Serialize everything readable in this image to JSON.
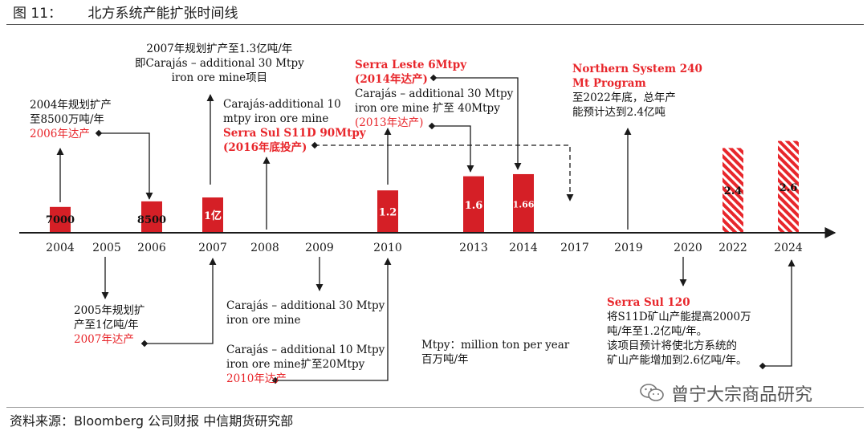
{
  "title": "图 11：      北方系统产能扩张时间线",
  "source": "资料来源：Bloomberg 公司财报 中信期货研究部",
  "watermark": "曾宁大宗商品研究",
  "colors": {
    "bar": "#d51f26",
    "hatch": "#e8262b",
    "red_text": "#e8262b",
    "axis": "#1a1a1a"
  },
  "chart_data": {
    "type": "bar",
    "categories": [
      "2004",
      "2005",
      "2006",
      "2007",
      "2008",
      "2009",
      "2010",
      "2013",
      "2014",
      "2017",
      "2019",
      "2020",
      "2022",
      "2024"
    ],
    "series": [
      {
        "values": [
          7000,
          null,
          8500,
          null,
          null,
          null,
          null,
          null,
          null,
          null,
          null,
          null,
          null,
          null
        ],
        "labels": [
          "7000",
          null,
          "8500",
          null,
          null,
          null,
          null,
          null,
          null,
          null,
          null,
          null,
          null,
          null
        ],
        "style": "solid"
      },
      {
        "values": [
          null,
          null,
          null,
          1,
          null,
          null,
          1.2,
          1.6,
          1.66,
          null,
          null,
          null,
          null,
          null
        ],
        "labels": [
          null,
          null,
          null,
          "1亿",
          null,
          null,
          "1.2",
          "1.6",
          "1.66",
          null,
          null,
          null,
          null,
          null
        ],
        "style": "solid"
      },
      {
        "values": [
          null,
          null,
          null,
          null,
          null,
          null,
          null,
          null,
          null,
          null,
          null,
          null,
          2.4,
          2.6
        ],
        "labels": [
          null,
          null,
          null,
          null,
          null,
          null,
          null,
          null,
          null,
          null,
          null,
          null,
          "2.4",
          "2.6"
        ],
        "style": "hatched"
      }
    ]
  },
  "annotations": {
    "a2004": [
      "2004年规划扩产",
      "至8500万吨/年"
    ],
    "a2004_red": "2006年达产",
    "a2007top": [
      "2007年规划扩产至1.3亿吨/年",
      "即Carajás – additional 30 Mtpy",
      "iron ore mine项目"
    ],
    "a2008top": [
      "Carajás-additional 10",
      "mtpy iron ore mine"
    ],
    "a2008_red1": "Serra Sul S11D 90Mtpy",
    "a2008_red2": "(2016年底投产)",
    "a2013_red1": "Serra Leste 6Mtpy",
    "a2013_red2": "(2014年达产)",
    "a2013_lines": [
      "Carajás – additional 30 Mtpy",
      "iron ore mine 扩至 40Mtpy"
    ],
    "a2013_red3": "(2013年达产)",
    "a2019_red1": "Northern System 240",
    "a2019_red2": "Mt Program",
    "a2019_lines": [
      "至2022年底，总年产",
      "能预计达到2.4亿吨"
    ],
    "a2005_lines": [
      "2005年规划扩",
      "产至1亿吨/年"
    ],
    "a2005_red": "2007年达产",
    "a2009_lines": [
      "Carajás – additional 30 Mtpy",
      "iron ore mine"
    ],
    "a2010_lines": [
      "Carajás – additional 10 Mtpy",
      "iron ore mine扩至20Mtpy"
    ],
    "a2010_red": "2010年达产",
    "unit_lines": [
      "Mtpy：million ton per year",
      "百万吨/年"
    ],
    "a2020_red": "Serra Sul 120",
    "a2020_lines": [
      "将S11D矿山产能提高2000万",
      "吨/年至1.2亿吨/年。",
      "该项目预计将使北方系统的",
      "矿山产能增加到2.6亿吨/年。"
    ]
  }
}
